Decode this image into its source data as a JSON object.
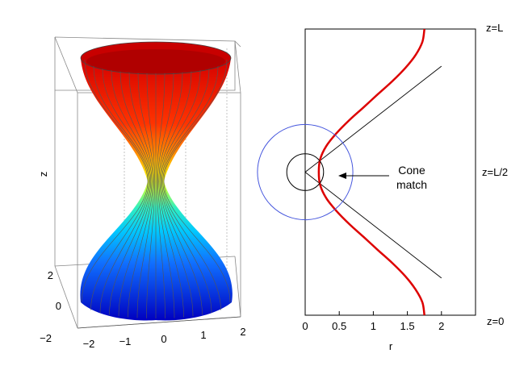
{
  "chart_data": [
    {
      "type": "surface",
      "description_free": true,
      "zlabel": "z",
      "x_ticks": [
        "−2",
        "−1",
        "0",
        "1",
        "2"
      ],
      "y_ticks": [
        "−2",
        "0",
        "2"
      ],
      "xlim": [
        -2,
        2
      ],
      "ylim": [
        -2,
        2
      ],
      "colormap": "jet",
      "surface": "hyperboloid of revolution, radius 1.75 at both ends, minimum near 0.2 at mid-height"
    },
    {
      "type": "line",
      "xlabel": "r",
      "x_ticks": [
        "0",
        "0.5",
        "1",
        "1.5",
        "2"
      ],
      "xlim": [
        0,
        2.5
      ],
      "y_tick_labels": [
        "z=L",
        "z=L/2",
        "z=0"
      ],
      "annotation": [
        "Cone",
        "match"
      ],
      "series": [
        {
          "color": "#dd0000",
          "r": [
            1.75,
            1.72,
            1.62,
            1.47,
            1.28,
            1.07,
            0.86,
            0.65,
            0.46,
            0.31,
            0.22,
            0.2,
            0.22,
            0.31,
            0.46,
            0.65,
            0.86,
            1.07,
            1.28,
            1.47,
            1.62,
            1.72,
            1.75
          ],
          "z": [
            0,
            0.045,
            0.09,
            0.136,
            0.182,
            0.227,
            0.273,
            0.318,
            0.364,
            0.409,
            0.455,
            0.5,
            0.545,
            0.591,
            0.636,
            0.682,
            0.727,
            0.773,
            0.818,
            0.864,
            0.909,
            0.955,
            1
          ]
        }
      ],
      "cone_lines": [
        {
          "r": [
            0,
            2
          ],
          "z": [
            0.5,
            0.87
          ]
        },
        {
          "r": [
            0,
            2
          ],
          "z": [
            0.5,
            0.13
          ]
        }
      ],
      "circles": [
        {
          "color": "#000000",
          "center_r": 0,
          "center_z": 0.5,
          "radius_r": 0.27
        },
        {
          "color": "#4455dd",
          "center_r": 0,
          "center_z": 0.5,
          "radius_r": 0.7
        }
      ]
    }
  ]
}
